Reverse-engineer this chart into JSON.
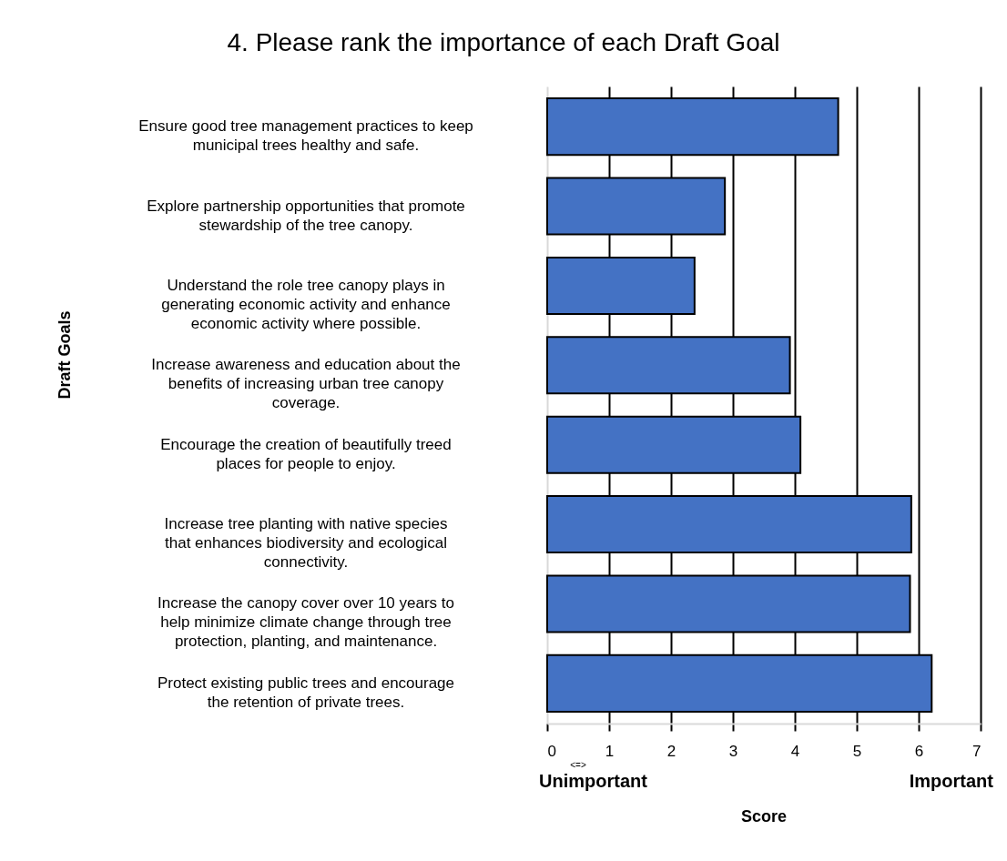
{
  "chart_data": {
    "type": "bar",
    "orientation": "horizontal",
    "title": "4. Please rank the importance of each Draft Goal",
    "xlabel": "Score",
    "ylabel": "Draft Goals",
    "categories": [
      "Ensure good tree management practices to keep municipal trees healthy and safe.",
      "Explore partnership opportunities that promote stewardship of the tree canopy.",
      "Understand the role tree canopy plays in generating economic activity and enhance economic activity where possible.",
      "Increase awareness and education about the benefits of increasing urban tree canopy coverage.",
      "Encourage the creation of beautifully treed places for people to enjoy.",
      "Increase tree planting with native species that enhances biodiversity and ecological connectivity.",
      "Increase the canopy cover over 10 years to help minimize climate change through tree protection, planting, and maintenance.",
      "Protect existing public trees and encourage the retention of private trees."
    ],
    "values": [
      4.7,
      2.87,
      2.38,
      3.92,
      4.09,
      5.88,
      5.86,
      6.21
    ],
    "color": "#4472c4",
    "xlim": [
      0,
      7
    ],
    "xticks": [
      0,
      1,
      2,
      3,
      4,
      5,
      6,
      7
    ],
    "grid": "x",
    "annotations": [
      "Unimportant",
      "<=>",
      "Important"
    ]
  }
}
